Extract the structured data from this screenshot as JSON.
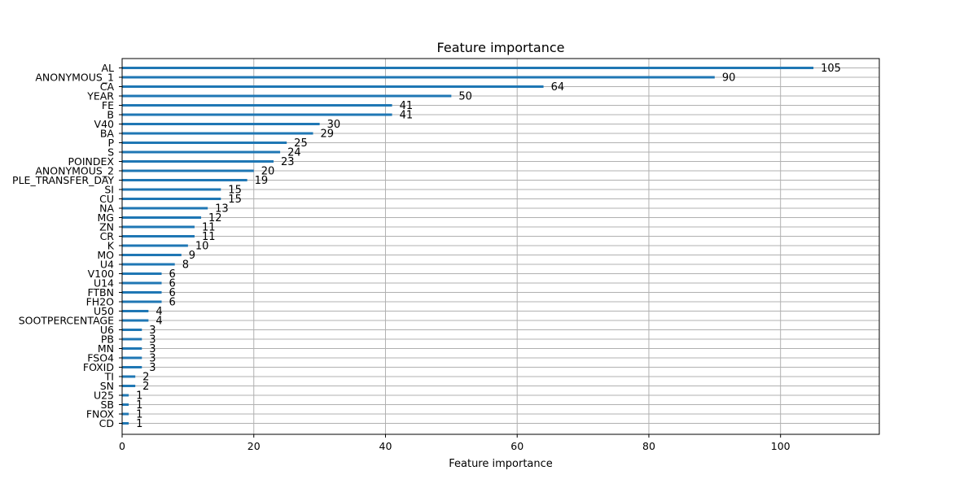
{
  "chart_data": {
    "type": "bar",
    "orientation": "horizontal",
    "title": "Feature importance",
    "xlabel": "Feature importance",
    "ylabel": "",
    "xlim": [
      0,
      115
    ],
    "xticks": [
      0,
      20,
      40,
      60,
      80,
      100
    ],
    "grid": true,
    "bar_color": "#1f77b4",
    "grid_color": "#b0b0b0",
    "categories": [
      "AL",
      "ANONYMOUS_1",
      "CA",
      "YEAR",
      "FE",
      "B",
      "V40",
      "BA",
      "P",
      "S",
      "POINDEX",
      "ANONYMOUS_2",
      "PLE_TRANSFER_DAY",
      "SI",
      "CU",
      "NA",
      "MG",
      "ZN",
      "CR",
      "K",
      "MO",
      "U4",
      "V100",
      "U14",
      "FTBN",
      "FH2O",
      "U50",
      "SOOTPERCENTAGE",
      "U6",
      "PB",
      "MN",
      "FSO4",
      "FOXID",
      "TI",
      "SN",
      "U25",
      "SB",
      "FNOX",
      "CD"
    ],
    "values": [
      105,
      90,
      64,
      50,
      41,
      41,
      30,
      29,
      25,
      24,
      23,
      20,
      19,
      15,
      15,
      13,
      12,
      11,
      11,
      10,
      9,
      8,
      6,
      6,
      6,
      6,
      4,
      4,
      3,
      3,
      3,
      3,
      3,
      2,
      2,
      1,
      1,
      1,
      1
    ]
  }
}
